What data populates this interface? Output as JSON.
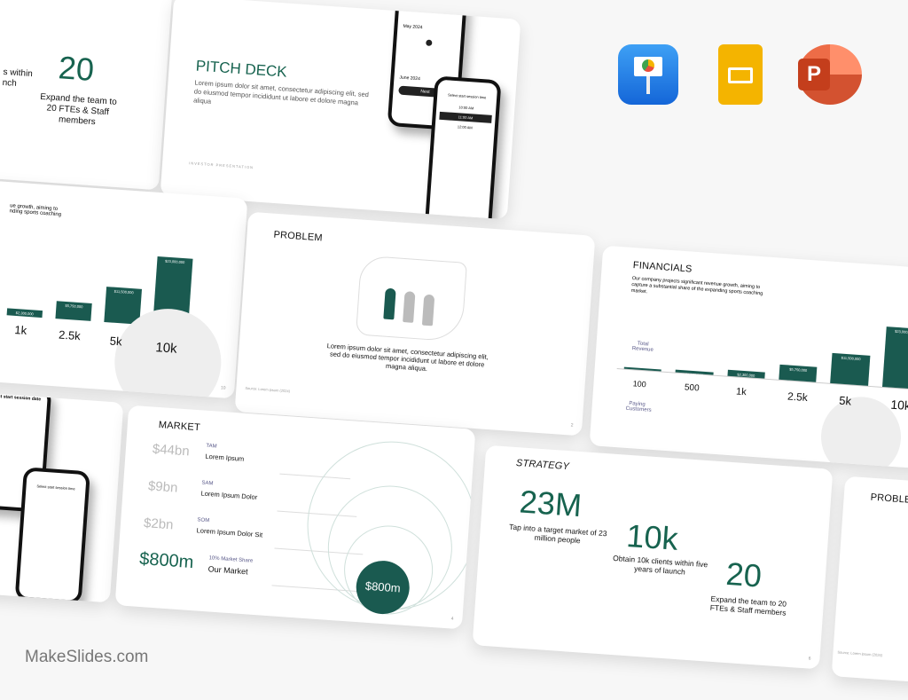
{
  "brand": "MakeSlides.com",
  "apps": [
    {
      "icon": "keynote-icon"
    },
    {
      "icon": "google-slides-icon"
    },
    {
      "icon": "powerpoint-icon"
    }
  ],
  "colors": {
    "accent": "#17634f",
    "bar": "#1a5a50"
  },
  "pitch": {
    "title": "PITCH DECK",
    "body": "Lorem ipsum dolor sit amet, consectetur adipiscing elit, sed do eiusmod tempor incididunt ut labore et dolore magna aliqua",
    "footer": "INVESTOR PRESENTATION",
    "phone1": {
      "title": "Select start session date",
      "m1": "May 2024",
      "m2": "June 2024",
      "btn": "Next"
    },
    "phone2": {
      "title": "Select start session time",
      "o1": "10:00 AM",
      "o2": "11:00 AM",
      "o3": "12:00 AM"
    }
  },
  "strategy_partial": {
    "big1": "k",
    "cap1": "s within\nnch",
    "big2": "20",
    "cap2": "Expand the team to 20 FTEs & Staff members"
  },
  "fin_partial": {
    "desc": "ue growth, aiming to\nnding sports coaching",
    "bars": [
      "$2,300,000",
      "$5,750,000",
      "$11,500,000",
      "$23,000,000"
    ],
    "counts": [
      "1k",
      "2.5k",
      "5k",
      "10k"
    ],
    "page": "10"
  },
  "problem": {
    "title": "PROBLEM",
    "body": "Lorem ipsum dolor sit amet, consectetur adipiscing elit, sed do eiusmod tempor incididunt ut labore et dolore magna aliqua.",
    "source": "Source: Lorem ipsum (2024)",
    "page": "2"
  },
  "financials": {
    "title": "FINANCIALS",
    "desc": "Our company projects significant revenue growth, aiming to capture a substantial share of the expanding sports coaching market.",
    "revenue_label": "Total Revenue",
    "customers_label": "Paying Customers",
    "chart_data": {
      "type": "bar",
      "categories": [
        "100",
        "500",
        "1k",
        "2.5k",
        "5k",
        "10k"
      ],
      "values": [
        230000,
        1150000,
        2300000,
        5750000,
        11500000,
        23000000
      ],
      "labels": [
        "",
        "$1,150,000",
        "$2,300,000",
        "$5,750,000",
        "$11,500,000",
        "$23,000,000"
      ]
    }
  },
  "market": {
    "title": "MARKET",
    "rows": [
      {
        "value": "$44bn",
        "tag": "TAM",
        "label": "Lorem Ipsum"
      },
      {
        "value": "$9bn",
        "tag": "SAM",
        "label": "Lorem Ipsum Dolor"
      },
      {
        "value": "$2bn",
        "tag": "SOM",
        "label": "Lorem Ipsum Dolor Sit"
      },
      {
        "value": "$800m",
        "tag": "10% Market Share",
        "label": "Our Market"
      }
    ],
    "circle": "$800m",
    "page": "4"
  },
  "strategy": {
    "title": "STRATEGY",
    "items": [
      {
        "big": "23M",
        "cap": "Tap into a target market of 23 million people"
      },
      {
        "big": "10k",
        "cap": "Obtain 10k clients within five years of launch"
      },
      {
        "big": "20",
        "cap": "Expand the team to 20 FTEs & Staff members"
      }
    ],
    "page": "6"
  },
  "problem_partial": {
    "title": "PROBLEM",
    "source": "Source: Lorem ipsum (2024)"
  }
}
